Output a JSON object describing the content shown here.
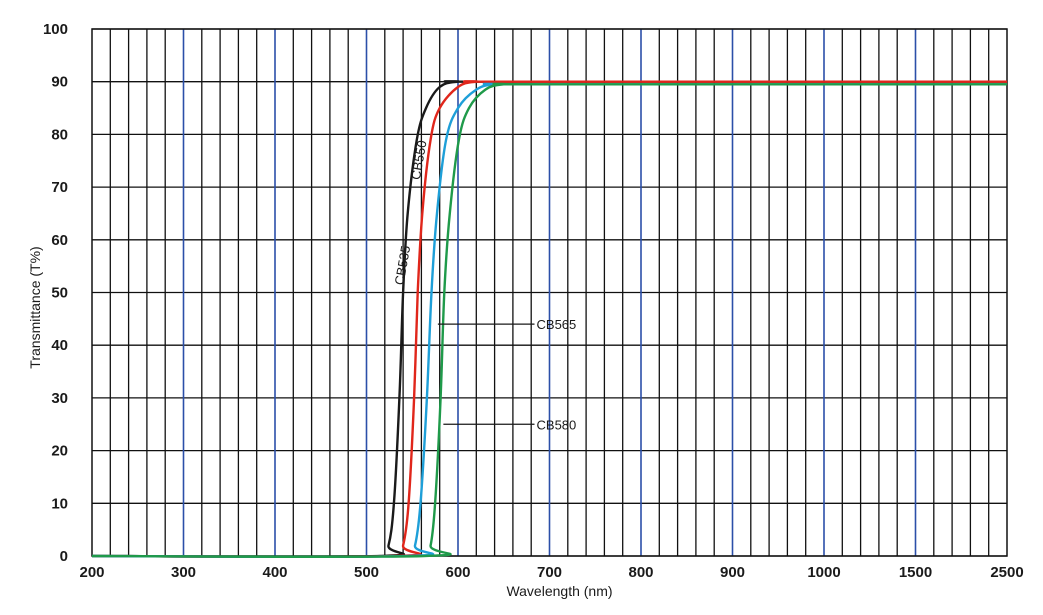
{
  "chart_data": {
    "type": "line",
    "title": "",
    "xlabel": "Wavelength (nm)",
    "ylabel": "Transmittance (T%)",
    "ylim": [
      0,
      100
    ],
    "y_ticks": [
      "0",
      "10",
      "20",
      "30",
      "40",
      "50",
      "60",
      "70",
      "80",
      "90",
      "100"
    ],
    "x_ticks": [
      "200",
      "300",
      "400",
      "500",
      "600",
      "700",
      "800",
      "900",
      "1000",
      "1500",
      "2500"
    ],
    "x_ticks_note": "non-linear axis; 5 grid columns per labeled interval",
    "grid": true,
    "colors": {
      "major_grid": "#2b4fa8",
      "minor_grid": "#111111",
      "CB535": "#1a1a1a",
      "CB550": "#e0261b",
      "CB565": "#1e9fd8",
      "CB580": "#1f9a4a"
    },
    "series": [
      {
        "name": "CB535",
        "color": "#1a1a1a",
        "x": [
          200,
          515,
          524,
          530,
          536,
          540,
          545,
          555,
          565,
          580,
          600,
          640,
          2500
        ],
        "y": [
          0,
          0,
          2,
          10,
          30,
          50,
          65,
          79,
          85,
          89,
          90,
          90,
          90
        ]
      },
      {
        "name": "CB550",
        "color": "#e0261b",
        "x": [
          200,
          532,
          540,
          546,
          552,
          556,
          561,
          570,
          580,
          600,
          620,
          660,
          2500
        ],
        "y": [
          0,
          0,
          2,
          10,
          30,
          50,
          65,
          79,
          85,
          89,
          90,
          90,
          90
        ]
      },
      {
        "name": "CB565",
        "color": "#1e9fd8",
        "x": [
          200,
          545,
          553,
          559,
          566,
          571,
          577,
          587,
          600,
          620,
          640,
          680,
          2500
        ],
        "y": [
          0,
          0,
          2,
          10,
          30,
          50,
          65,
          79,
          85,
          88.5,
          89.5,
          89.5,
          89.5
        ]
      },
      {
        "name": "CB580",
        "color": "#1f9a4a",
        "x": [
          200,
          563,
          570,
          575,
          581,
          585,
          591,
          601,
          612,
          630,
          650,
          690,
          2500
        ],
        "y": [
          0,
          0,
          2,
          10,
          30,
          50,
          65,
          79,
          85,
          88.5,
          89.5,
          89.5,
          89.5
        ]
      }
    ],
    "labels": [
      {
        "text": "CB535",
        "x": 544,
        "y": 55,
        "rotate": -80
      },
      {
        "text": "CB550",
        "x": 562,
        "y": 75,
        "rotate": -80
      },
      {
        "text": "CB565",
        "x": 688,
        "y": 44,
        "leader_to_x": 578
      },
      {
        "text": "CB580",
        "x": 688,
        "y": 25,
        "leader_to_x": 584
      }
    ]
  }
}
